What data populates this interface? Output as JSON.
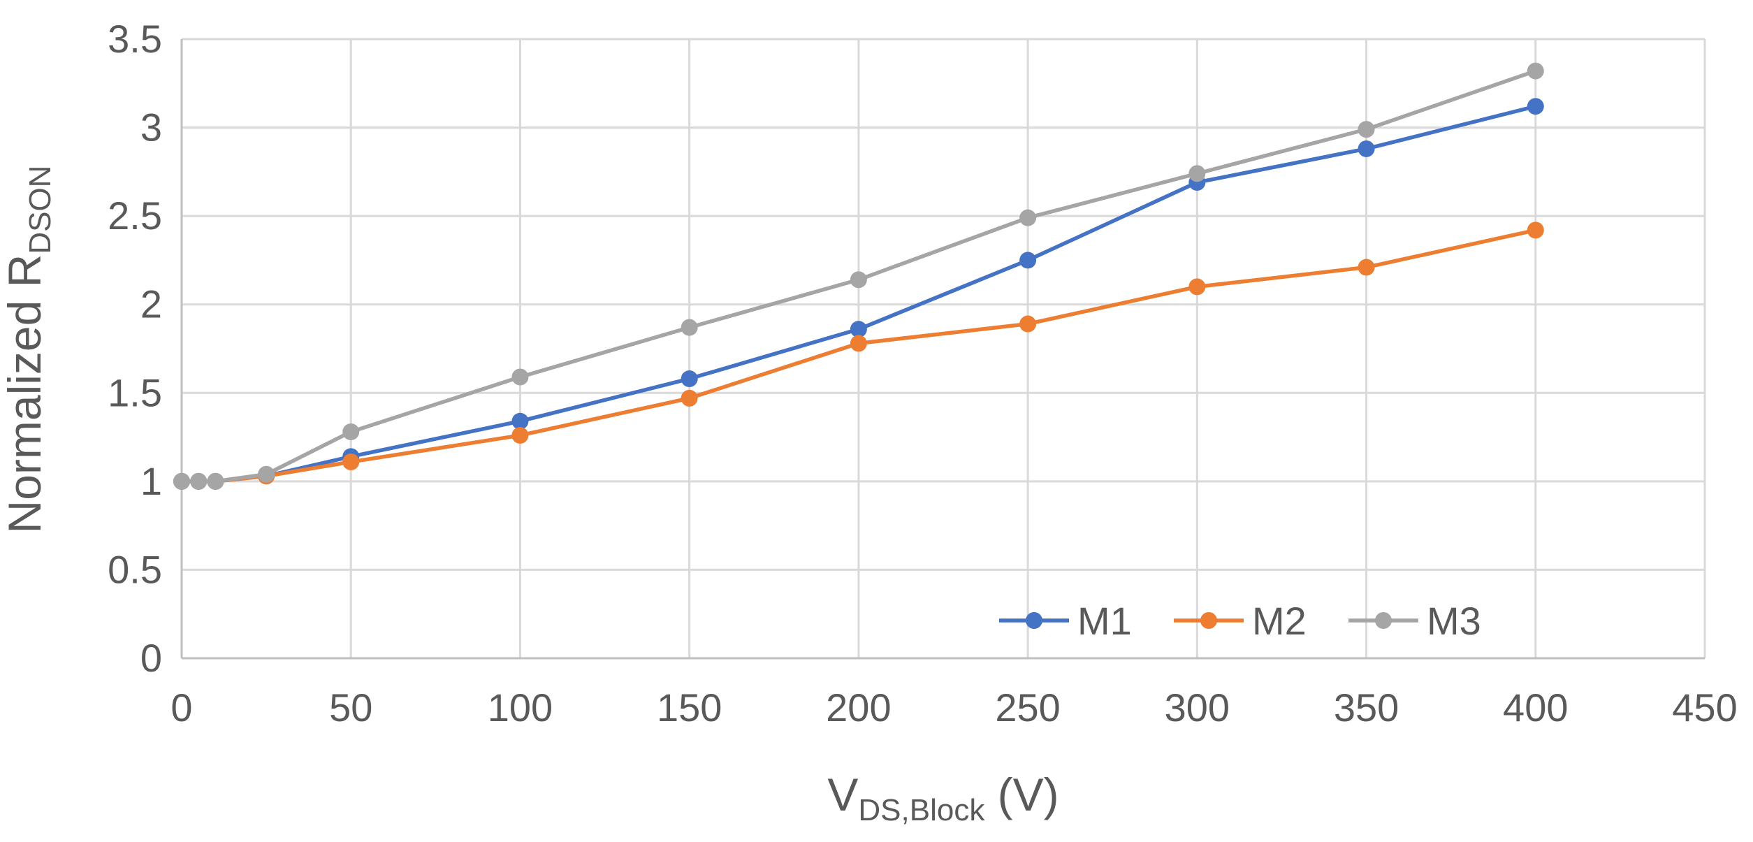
{
  "chart_data": {
    "type": "line",
    "title": "",
    "xlabel": {
      "main": "V",
      "sub": "DS,Block",
      "suffix": " (V)"
    },
    "ylabel": {
      "main": "Normalized R",
      "sub": "DSON"
    },
    "xlim": [
      0,
      450
    ],
    "ylim": [
      0,
      3.5
    ],
    "xticks": [
      0,
      50,
      100,
      150,
      200,
      250,
      300,
      350,
      400,
      450
    ],
    "yticks": [
      0,
      0.5,
      1,
      1.5,
      2,
      2.5,
      3,
      3.5
    ],
    "xtick_labels": [
      "0",
      "50",
      "100",
      "150",
      "200",
      "250",
      "300",
      "350",
      "400",
      "450"
    ],
    "ytick_labels": [
      "0",
      "0.5",
      "1",
      "1.5",
      "2",
      "2.5",
      "3",
      "3.5"
    ],
    "grid": true,
    "legend_position": "bottom-right",
    "x": [
      0,
      5,
      10,
      25,
      50,
      100,
      150,
      200,
      250,
      300,
      350,
      400
    ],
    "series": [
      {
        "name": "M1",
        "color": "#4472c4",
        "values": [
          1.0,
          1.0,
          1.0,
          1.03,
          1.14,
          1.34,
          1.58,
          1.86,
          2.25,
          2.69,
          2.88,
          3.12
        ]
      },
      {
        "name": "M2",
        "color": "#ed7d31",
        "values": [
          1.0,
          1.0,
          1.0,
          1.03,
          1.11,
          1.26,
          1.47,
          1.78,
          1.89,
          2.1,
          2.21,
          2.42
        ]
      },
      {
        "name": "M3",
        "color": "#a5a5a5",
        "values": [
          1.0,
          1.0,
          1.0,
          1.04,
          1.28,
          1.59,
          1.87,
          2.14,
          2.49,
          2.74,
          2.99,
          3.32
        ]
      }
    ]
  }
}
